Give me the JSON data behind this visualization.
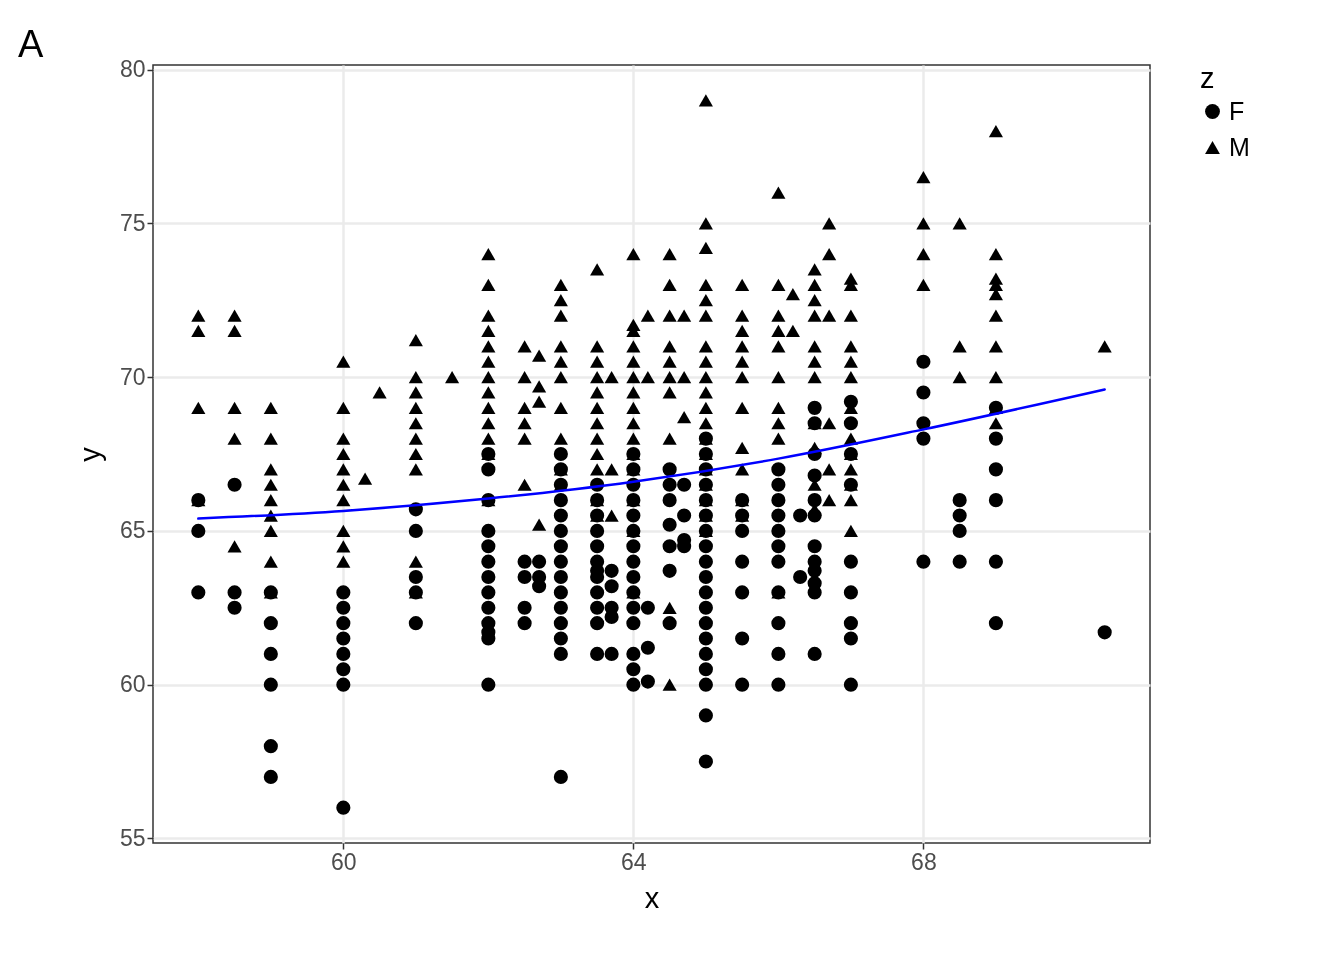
{
  "chart_data": {
    "type": "scatter",
    "title": "A",
    "xlabel": "x",
    "ylabel": "y",
    "legend_title": "z",
    "xlim": [
      57.375,
      71.125
    ],
    "ylim": [
      54.85,
      80.15
    ],
    "xticks": [
      60,
      64,
      68
    ],
    "yticks": [
      55,
      60,
      65,
      70,
      75,
      80
    ],
    "grid": true,
    "legend": "right",
    "series": [
      {
        "name": "F",
        "color": "#000000",
        "marker": "circle",
        "x": [
          58,
          58,
          58,
          58.5,
          58.5,
          58.5,
          59,
          59,
          59,
          59,
          59,
          59,
          60,
          60,
          60,
          60,
          60,
          60,
          60,
          60,
          61,
          61,
          61,
          61,
          61,
          62,
          62,
          62,
          62,
          62,
          62,
          62,
          62,
          62,
          62,
          62,
          62,
          62,
          62.5,
          62.5,
          62.5,
          62.5,
          62.7,
          62.7,
          62.7,
          63,
          63,
          63,
          63,
          63,
          63,
          63,
          63,
          63,
          63,
          63,
          63,
          63,
          63,
          63,
          63.5,
          63.5,
          63.5,
          63.5,
          63.5,
          63.5,
          63.5,
          63.5,
          63.5,
          63.5,
          63.5,
          63.5,
          63.7,
          63.7,
          63.7,
          63.7,
          63.7,
          64,
          64,
          64,
          64,
          64,
          64,
          64,
          64,
          64,
          64,
          64,
          64,
          64,
          64,
          64,
          64.2,
          64.2,
          64.2,
          64.5,
          64.5,
          64.5,
          64.5,
          64.5,
          64.5,
          64.5,
          64.7,
          64.7,
          64.7,
          64.7,
          65,
          65,
          65,
          65,
          65,
          65,
          65,
          65,
          65,
          65,
          65,
          65,
          65,
          65,
          65,
          65,
          65,
          65,
          65,
          65.5,
          65.5,
          65.5,
          65.5,
          65.5,
          65.5,
          65.5,
          66,
          66,
          66,
          66,
          66,
          66,
          66,
          66,
          66,
          66,
          66,
          66.3,
          66.3,
          66.5,
          66.5,
          66.5,
          66.5,
          66.5,
          66.5,
          66.5,
          66.5,
          66.5,
          66.5,
          66.5,
          66.5,
          67,
          67,
          67,
          67,
          67,
          67,
          67,
          67,
          67,
          68,
          68,
          68,
          68,
          68,
          68.5,
          68.5,
          68.5,
          68.5,
          69,
          69,
          69,
          69,
          69,
          69,
          70.5
        ],
        "values": [
          66,
          65,
          63,
          66.5,
          63,
          62.5,
          63,
          62,
          61,
          60,
          58,
          57,
          63,
          62.5,
          62,
          61.5,
          61,
          60.5,
          60,
          56,
          65.7,
          65,
          63.5,
          63,
          62,
          67.5,
          67,
          66,
          65,
          64.5,
          64,
          63.5,
          63,
          62.5,
          62,
          61.7,
          61.5,
          60,
          64,
          63.5,
          62.5,
          62,
          64,
          63.5,
          63.2,
          67.5,
          67,
          66.5,
          66,
          65.5,
          65,
          64.5,
          64,
          63.5,
          63,
          62.5,
          62,
          61.5,
          61,
          57,
          66.5,
          66,
          65.5,
          65,
          64.5,
          64,
          63.7,
          63.5,
          63,
          62.5,
          62,
          61,
          63.7,
          63.2,
          62.5,
          62.2,
          61,
          67.5,
          67,
          66.5,
          66,
          65.5,
          65,
          64.5,
          64,
          63.5,
          63,
          62.5,
          62,
          61,
          60.5,
          60,
          62.5,
          61.2,
          60.1,
          67,
          66.5,
          66,
          65.2,
          64.5,
          63.7,
          62,
          66.5,
          65.5,
          64.7,
          64.5,
          68,
          67.5,
          67,
          66.5,
          66,
          65.5,
          65,
          64.5,
          64,
          63.5,
          63,
          62.5,
          62,
          61.5,
          61,
          60.5,
          60,
          59,
          57.5,
          66,
          65.5,
          65,
          64,
          63,
          61.5,
          60,
          67,
          66.5,
          66,
          65.5,
          65,
          64.5,
          64,
          63,
          62,
          61,
          60,
          65.5,
          63.5,
          69,
          68.5,
          67.5,
          66.8,
          66,
          65.5,
          64.5,
          64,
          63.7,
          63.3,
          63,
          61,
          69.2,
          68.5,
          67.5,
          66.5,
          64,
          63,
          62,
          61.5,
          60,
          70.5,
          69.5,
          68.5,
          68,
          64,
          66,
          65.5,
          65,
          64,
          69,
          68,
          67,
          66,
          64,
          62,
          61.7
        ]
      },
      {
        "name": "M",
        "color": "#000000",
        "marker": "triangle",
        "x": [
          58,
          58,
          58,
          58,
          58.5,
          58.5,
          58.5,
          58.5,
          58.5,
          59,
          59,
          59,
          59,
          59,
          59,
          59,
          59,
          59,
          60,
          60,
          60,
          60,
          60,
          60,
          60,
          60,
          60,
          60,
          60.3,
          60.5,
          61,
          61,
          61,
          61,
          61,
          61,
          61,
          61,
          61,
          61,
          61.5,
          62,
          62,
          62,
          62,
          62,
          62,
          62,
          62,
          62,
          62,
          62,
          62,
          62,
          62.5,
          62.5,
          62.5,
          62.5,
          62.5,
          62.5,
          62.7,
          62.7,
          62.7,
          62.7,
          63,
          63,
          63,
          63,
          63,
          63,
          63,
          63,
          63,
          63,
          63.5,
          63.5,
          63.5,
          63.5,
          63.5,
          63.5,
          63.5,
          63.5,
          63.5,
          63.5,
          63.5,
          63.5,
          63.7,
          63.7,
          63.7,
          64,
          64,
          64,
          64,
          64,
          64,
          64,
          64,
          64,
          64,
          64,
          64,
          64,
          64,
          64,
          64.2,
          64.2,
          64.5,
          64.5,
          64.5,
          64.5,
          64.5,
          64.5,
          64.5,
          64.5,
          64.5,
          64.5,
          64.7,
          64.7,
          64.7,
          65,
          65,
          65,
          65,
          65,
          65,
          65,
          65,
          65,
          65,
          65,
          65,
          65,
          65,
          65,
          65,
          65,
          65,
          65,
          65.5,
          65.5,
          65.5,
          65.5,
          65.5,
          65.5,
          65.5,
          65.5,
          65.5,
          65.5,
          65.5,
          66,
          66,
          66,
          66,
          66,
          66,
          66,
          66,
          66,
          66,
          66.2,
          66.2,
          66.5,
          66.5,
          66.5,
          66.5,
          66.5,
          66.5,
          66.5,
          66.5,
          66.5,
          66.5,
          66.5,
          66.7,
          66.7,
          66.7,
          66.7,
          66.7,
          66.7,
          67,
          67,
          67,
          67,
          67,
          67,
          67,
          67,
          67,
          67,
          67,
          67,
          67,
          68,
          68,
          68,
          68,
          68.5,
          68.5,
          68.5,
          69,
          69,
          69,
          69,
          69,
          69,
          69,
          69,
          69,
          69,
          70.5
        ],
        "values": [
          72,
          71.5,
          69,
          66,
          72,
          71.5,
          69,
          68,
          64.5,
          69,
          68,
          67,
          66.5,
          66,
          65.5,
          65,
          64,
          63,
          70.5,
          69,
          68,
          67.5,
          67,
          66.5,
          66,
          65,
          64.5,
          64,
          66.7,
          69.5,
          71.2,
          70,
          69.5,
          69,
          68.5,
          68,
          67.5,
          67,
          64,
          63,
          70,
          74,
          73,
          72,
          71.5,
          71,
          70.5,
          70,
          69.5,
          69,
          68.5,
          68,
          67.5,
          66,
          71,
          70,
          69,
          68.5,
          68,
          66.5,
          70.7,
          69.7,
          69.2,
          65.2,
          73,
          72.5,
          72,
          71,
          70.5,
          70,
          69,
          68,
          67,
          66.5,
          73.5,
          71,
          70.5,
          70,
          69.5,
          69,
          68.5,
          68,
          67.5,
          67,
          66,
          65.5,
          70,
          67,
          65.5,
          74,
          71.7,
          71.5,
          71,
          70.5,
          70,
          69.5,
          69,
          68.5,
          68,
          67.5,
          67,
          66,
          65,
          63,
          72,
          70,
          74,
          73,
          72,
          71,
          70.5,
          70,
          69.5,
          68,
          62.5,
          60,
          72,
          70,
          68.7,
          79,
          75,
          74.2,
          73,
          72.5,
          72,
          71,
          70.5,
          70,
          69.5,
          69,
          68.5,
          68,
          67.5,
          67,
          66.5,
          66,
          65.5,
          65,
          73,
          72,
          71.5,
          71,
          70.5,
          70,
          69,
          67.7,
          67,
          66,
          65.5,
          76,
          73,
          72,
          71.5,
          71,
          70,
          69,
          68.5,
          68,
          63,
          72.7,
          71.5,
          73.5,
          73,
          72.5,
          72,
          71,
          70.5,
          70,
          68.5,
          67.7,
          66.5,
          65.7,
          75,
          74,
          72,
          68.5,
          67,
          66,
          73.2,
          73,
          72,
          71,
          70.5,
          70,
          69,
          68,
          67.5,
          67,
          66.5,
          66,
          65,
          76.5,
          75,
          74,
          73,
          75,
          71,
          70,
          78,
          74,
          73.2,
          73,
          72.7,
          72,
          71,
          70,
          69,
          68.5,
          71
        ]
      },
      {
        "type": "line",
        "color": "#0000ff",
        "x": [
          58,
          60,
          62,
          64,
          66,
          68,
          70.5
        ],
        "values": [
          65.4,
          65.65,
          66.05,
          66.6,
          67.35,
          68.3,
          69.6
        ]
      }
    ]
  }
}
